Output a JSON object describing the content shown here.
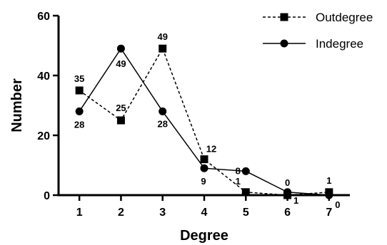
{
  "chart_data": {
    "type": "line",
    "title": "",
    "xlabel": "Degree",
    "ylabel": "Number",
    "x": [
      1,
      2,
      3,
      4,
      5,
      6,
      7
    ],
    "xlim": [
      0.5,
      7.5
    ],
    "ylim": [
      0,
      60
    ],
    "yticks": [
      0,
      20,
      40,
      60
    ],
    "grid": false,
    "legend_position": "top-right",
    "series": [
      {
        "name": "Outdegree",
        "values": [
          35,
          25,
          49,
          12,
          1,
          0,
          1
        ],
        "marker": "square",
        "line_style": "dashed",
        "color": "#000000",
        "labels": [
          "35",
          "25",
          "49",
          "12",
          "1",
          "0",
          "1"
        ]
      },
      {
        "name": "Indegree",
        "values": [
          28,
          49,
          28,
          9,
          8,
          1,
          0
        ],
        "marker": "circle",
        "line_style": "solid",
        "color": "#000000",
        "labels": [
          "28",
          "49",
          "28",
          "9",
          "8",
          "1",
          "0"
        ]
      }
    ]
  }
}
